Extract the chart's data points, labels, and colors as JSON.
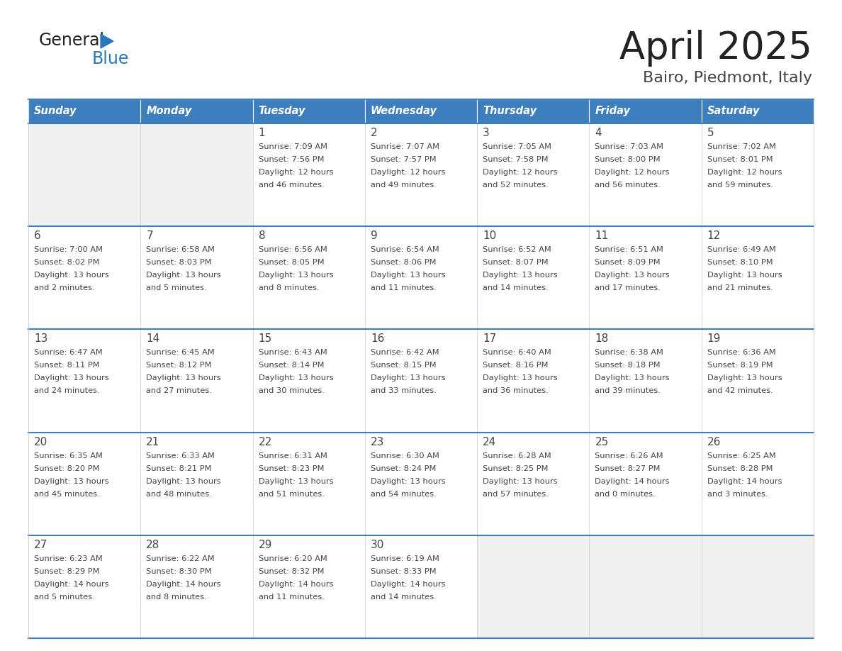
{
  "title": "April 2025",
  "subtitle": "Bairo, Piedmont, Italy",
  "header_bg": "#3d7ebf",
  "header_text_color": "#ffffff",
  "cell_bg_light": "#f0f0f0",
  "cell_bg_white": "#ffffff",
  "border_color": "#3d7ebf",
  "text_color": "#444444",
  "days_of_week": [
    "Sunday",
    "Monday",
    "Tuesday",
    "Wednesday",
    "Thursday",
    "Friday",
    "Saturday"
  ],
  "weeks": [
    [
      {
        "day": "",
        "sunrise": "",
        "sunset": "",
        "daylight": ""
      },
      {
        "day": "",
        "sunrise": "",
        "sunset": "",
        "daylight": ""
      },
      {
        "day": "1",
        "sunrise": "Sunrise: 7:09 AM",
        "sunset": "Sunset: 7:56 PM",
        "daylight": "Daylight: 12 hours\nand 46 minutes."
      },
      {
        "day": "2",
        "sunrise": "Sunrise: 7:07 AM",
        "sunset": "Sunset: 7:57 PM",
        "daylight": "Daylight: 12 hours\nand 49 minutes."
      },
      {
        "day": "3",
        "sunrise": "Sunrise: 7:05 AM",
        "sunset": "Sunset: 7:58 PM",
        "daylight": "Daylight: 12 hours\nand 52 minutes."
      },
      {
        "day": "4",
        "sunrise": "Sunrise: 7:03 AM",
        "sunset": "Sunset: 8:00 PM",
        "daylight": "Daylight: 12 hours\nand 56 minutes."
      },
      {
        "day": "5",
        "sunrise": "Sunrise: 7:02 AM",
        "sunset": "Sunset: 8:01 PM",
        "daylight": "Daylight: 12 hours\nand 59 minutes."
      }
    ],
    [
      {
        "day": "6",
        "sunrise": "Sunrise: 7:00 AM",
        "sunset": "Sunset: 8:02 PM",
        "daylight": "Daylight: 13 hours\nand 2 minutes."
      },
      {
        "day": "7",
        "sunrise": "Sunrise: 6:58 AM",
        "sunset": "Sunset: 8:03 PM",
        "daylight": "Daylight: 13 hours\nand 5 minutes."
      },
      {
        "day": "8",
        "sunrise": "Sunrise: 6:56 AM",
        "sunset": "Sunset: 8:05 PM",
        "daylight": "Daylight: 13 hours\nand 8 minutes."
      },
      {
        "day": "9",
        "sunrise": "Sunrise: 6:54 AM",
        "sunset": "Sunset: 8:06 PM",
        "daylight": "Daylight: 13 hours\nand 11 minutes."
      },
      {
        "day": "10",
        "sunrise": "Sunrise: 6:52 AM",
        "sunset": "Sunset: 8:07 PM",
        "daylight": "Daylight: 13 hours\nand 14 minutes."
      },
      {
        "day": "11",
        "sunrise": "Sunrise: 6:51 AM",
        "sunset": "Sunset: 8:09 PM",
        "daylight": "Daylight: 13 hours\nand 17 minutes."
      },
      {
        "day": "12",
        "sunrise": "Sunrise: 6:49 AM",
        "sunset": "Sunset: 8:10 PM",
        "daylight": "Daylight: 13 hours\nand 21 minutes."
      }
    ],
    [
      {
        "day": "13",
        "sunrise": "Sunrise: 6:47 AM",
        "sunset": "Sunset: 8:11 PM",
        "daylight": "Daylight: 13 hours\nand 24 minutes."
      },
      {
        "day": "14",
        "sunrise": "Sunrise: 6:45 AM",
        "sunset": "Sunset: 8:12 PM",
        "daylight": "Daylight: 13 hours\nand 27 minutes."
      },
      {
        "day": "15",
        "sunrise": "Sunrise: 6:43 AM",
        "sunset": "Sunset: 8:14 PM",
        "daylight": "Daylight: 13 hours\nand 30 minutes."
      },
      {
        "day": "16",
        "sunrise": "Sunrise: 6:42 AM",
        "sunset": "Sunset: 8:15 PM",
        "daylight": "Daylight: 13 hours\nand 33 minutes."
      },
      {
        "day": "17",
        "sunrise": "Sunrise: 6:40 AM",
        "sunset": "Sunset: 8:16 PM",
        "daylight": "Daylight: 13 hours\nand 36 minutes."
      },
      {
        "day": "18",
        "sunrise": "Sunrise: 6:38 AM",
        "sunset": "Sunset: 8:18 PM",
        "daylight": "Daylight: 13 hours\nand 39 minutes."
      },
      {
        "day": "19",
        "sunrise": "Sunrise: 6:36 AM",
        "sunset": "Sunset: 8:19 PM",
        "daylight": "Daylight: 13 hours\nand 42 minutes."
      }
    ],
    [
      {
        "day": "20",
        "sunrise": "Sunrise: 6:35 AM",
        "sunset": "Sunset: 8:20 PM",
        "daylight": "Daylight: 13 hours\nand 45 minutes."
      },
      {
        "day": "21",
        "sunrise": "Sunrise: 6:33 AM",
        "sunset": "Sunset: 8:21 PM",
        "daylight": "Daylight: 13 hours\nand 48 minutes."
      },
      {
        "day": "22",
        "sunrise": "Sunrise: 6:31 AM",
        "sunset": "Sunset: 8:23 PM",
        "daylight": "Daylight: 13 hours\nand 51 minutes."
      },
      {
        "day": "23",
        "sunrise": "Sunrise: 6:30 AM",
        "sunset": "Sunset: 8:24 PM",
        "daylight": "Daylight: 13 hours\nand 54 minutes."
      },
      {
        "day": "24",
        "sunrise": "Sunrise: 6:28 AM",
        "sunset": "Sunset: 8:25 PM",
        "daylight": "Daylight: 13 hours\nand 57 minutes."
      },
      {
        "day": "25",
        "sunrise": "Sunrise: 6:26 AM",
        "sunset": "Sunset: 8:27 PM",
        "daylight": "Daylight: 14 hours\nand 0 minutes."
      },
      {
        "day": "26",
        "sunrise": "Sunrise: 6:25 AM",
        "sunset": "Sunset: 8:28 PM",
        "daylight": "Daylight: 14 hours\nand 3 minutes."
      }
    ],
    [
      {
        "day": "27",
        "sunrise": "Sunrise: 6:23 AM",
        "sunset": "Sunset: 8:29 PM",
        "daylight": "Daylight: 14 hours\nand 5 minutes."
      },
      {
        "day": "28",
        "sunrise": "Sunrise: 6:22 AM",
        "sunset": "Sunset: 8:30 PM",
        "daylight": "Daylight: 14 hours\nand 8 minutes."
      },
      {
        "day": "29",
        "sunrise": "Sunrise: 6:20 AM",
        "sunset": "Sunset: 8:32 PM",
        "daylight": "Daylight: 14 hours\nand 11 minutes."
      },
      {
        "day": "30",
        "sunrise": "Sunrise: 6:19 AM",
        "sunset": "Sunset: 8:33 PM",
        "daylight": "Daylight: 14 hours\nand 14 minutes."
      },
      {
        "day": "",
        "sunrise": "",
        "sunset": "",
        "daylight": ""
      },
      {
        "day": "",
        "sunrise": "",
        "sunset": "",
        "daylight": ""
      },
      {
        "day": "",
        "sunrise": "",
        "sunset": "",
        "daylight": ""
      }
    ]
  ],
  "logo_general_color": "#222222",
  "logo_blue_color": "#2878be",
  "logo_triangle_color": "#2878be"
}
